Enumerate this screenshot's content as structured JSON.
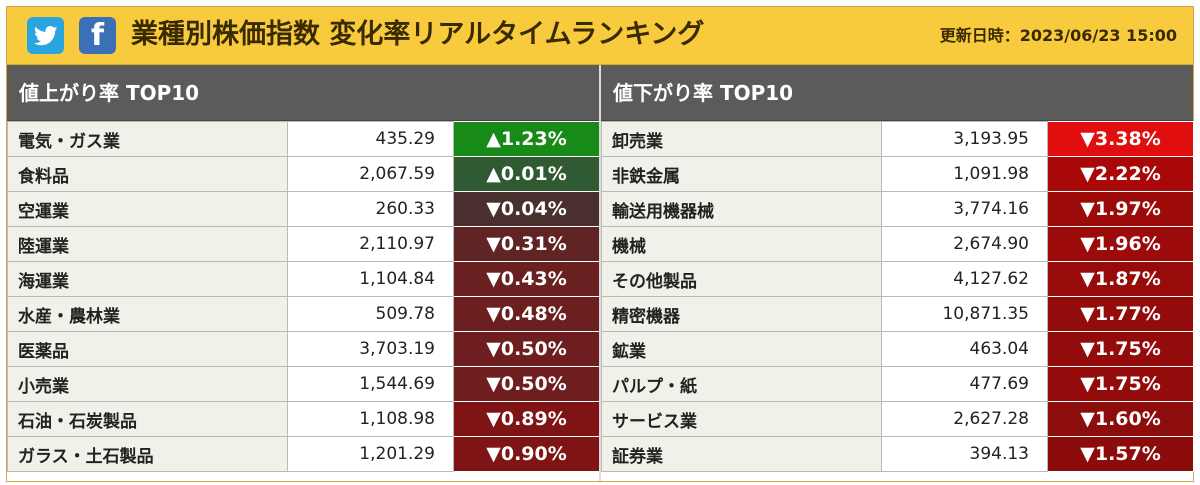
{
  "header": {
    "twitter_icon": "twitter-bird-icon",
    "facebook_icon": "facebook-f-icon",
    "facebook_glyph": "f",
    "title": "業種別株価指数 変化率リアルタイムランキング",
    "updated": "更新日時：2023/06/23 15:00",
    "bg_color": "#f8cb3e"
  },
  "gainers": {
    "heading": "値上がり率 TOP10",
    "rows": [
      {
        "name": "電気・ガス業",
        "value": "435.29",
        "change": "▲1.23%",
        "color": "#178a17"
      },
      {
        "name": "食料品",
        "value": "2,067.59",
        "change": "▲0.01%",
        "color": "#2f5a32"
      },
      {
        "name": "空運業",
        "value": "260.33",
        "change": "▼0.04%",
        "color": "#4a2f2f"
      },
      {
        "name": "陸運業",
        "value": "2,110.97",
        "change": "▼0.31%",
        "color": "#612424"
      },
      {
        "name": "海運業",
        "value": "1,104.84",
        "change": "▼0.43%",
        "color": "#6a2020"
      },
      {
        "name": "水産・農林業",
        "value": "509.78",
        "change": "▼0.48%",
        "color": "#6c1f1f"
      },
      {
        "name": "医薬品",
        "value": "3,703.19",
        "change": "▼0.50%",
        "color": "#6e1e1e"
      },
      {
        "name": "小売業",
        "value": "1,544.69",
        "change": "▼0.50%",
        "color": "#6e1e1e"
      },
      {
        "name": "石油・石炭製品",
        "value": "1,108.98",
        "change": "▼0.89%",
        "color": "#7e1414"
      },
      {
        "name": "ガラス・土石製品",
        "value": "1,201.29",
        "change": "▼0.90%",
        "color": "#7e1414"
      }
    ]
  },
  "losers": {
    "heading": "値下がり率 TOP10",
    "rows": [
      {
        "name": "卸売業",
        "value": "3,193.95",
        "change": "▼3.38%",
        "color": "#e00e0e"
      },
      {
        "name": "非鉄金属",
        "value": "1,091.98",
        "change": "▼2.22%",
        "color": "#a80808"
      },
      {
        "name": "輸送用機器械",
        "value": "3,774.16",
        "change": "▼1.97%",
        "color": "#9c0a0a"
      },
      {
        "name": "機械",
        "value": "2,674.90",
        "change": "▼1.96%",
        "color": "#9c0a0a"
      },
      {
        "name": "その他製品",
        "value": "4,127.62",
        "change": "▼1.87%",
        "color": "#970b0b"
      },
      {
        "name": "精密機器",
        "value": "10,871.35",
        "change": "▼1.77%",
        "color": "#940b0b"
      },
      {
        "name": "鉱業",
        "value": "463.04",
        "change": "▼1.75%",
        "color": "#930b0b"
      },
      {
        "name": "パルプ・紙",
        "value": "477.69",
        "change": "▼1.75%",
        "color": "#930b0b"
      },
      {
        "name": "サービス業",
        "value": "2,627.28",
        "change": "▼1.60%",
        "color": "#8d0c0c"
      },
      {
        "name": "証券業",
        "value": "394.13",
        "change": "▼1.57%",
        "color": "#8c0c0c"
      }
    ]
  }
}
